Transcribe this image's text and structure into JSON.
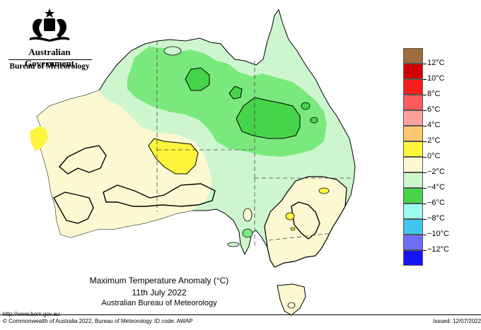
{
  "header": {
    "government": "Australian Government",
    "bureau": "Bureau of Meteorology"
  },
  "map": {
    "title": "Maximum Temperature Anomaly (°C)",
    "date": "11th July 2022",
    "source": "Australian Bureau of Meteorology",
    "colors": {
      "zero_to_plus2": "#fbf8d2",
      "plus2_to_plus4": "#fcf53c",
      "minus2_to_zero": "#cdf6cf",
      "minus4_to_minus2": "#7ae97d",
      "minus6_to_minus4": "#46d44a"
    }
  },
  "legend": {
    "swatches": [
      {
        "color": "#a06c3d"
      },
      {
        "color": "#d20000"
      },
      {
        "color": "#f81d1d"
      },
      {
        "color": "#fe5b5b"
      },
      {
        "color": "#fea0a0"
      },
      {
        "color": "#ffc86e"
      },
      {
        "color": "#fcf53c"
      },
      {
        "color": "#fbf8d2"
      },
      {
        "color": "#cdf6cf"
      },
      {
        "color": "#46d44a"
      },
      {
        "color": "#9dfaf0"
      },
      {
        "color": "#40c4f0"
      },
      {
        "color": "#6e6efa"
      },
      {
        "color": "#1414f5"
      }
    ],
    "labels": [
      "12°C",
      "10°C",
      "8°C",
      "6°C",
      "4°C",
      "2°C",
      "0°C",
      "−2°C",
      "−4°C",
      "−6°C",
      "−8°C",
      "−10°C",
      "−12°C"
    ]
  },
  "footer": {
    "url": "http://www.bom.gov.au",
    "copyright": "© Commonwealth of Australia 2022, Bureau of Meteorology",
    "id_code": "ID code: AWAP",
    "issued": "Issued: 12/07/2022"
  }
}
